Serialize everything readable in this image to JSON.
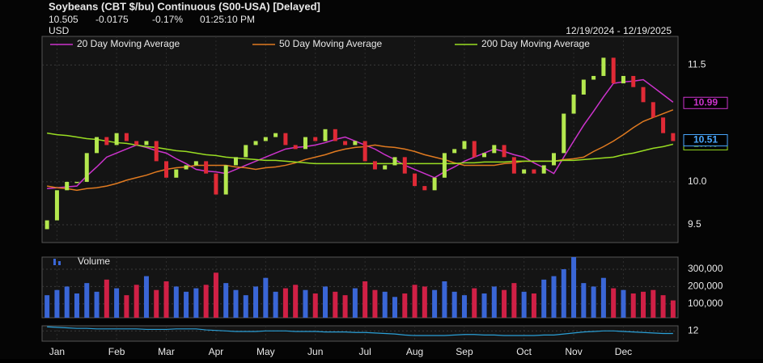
{
  "chart_data": [
    {
      "type": "candlestick",
      "title": "Soybeans (CBT $/bu) Continuous (S00-USA) [Delayed]",
      "quote": [
        "10.505",
        "-0.0175",
        "-0.17%",
        "01:25:10 PM"
      ],
      "currency": "USD",
      "date_range": "12/19/2024 - 12/19/2025",
      "categories": [
        null,
        null,
        null,
        null,
        null,
        null,
        null,
        null,
        null,
        null,
        null,
        null,
        null,
        null,
        null,
        null,
        null,
        null,
        null,
        null,
        null,
        null,
        null,
        null,
        null,
        null,
        null,
        null,
        null,
        null,
        null,
        null,
        null,
        null,
        null,
        null,
        null,
        null,
        null,
        null,
        null,
        null,
        null,
        null,
        null,
        null,
        null,
        null,
        null,
        null,
        null,
        null,
        null,
        null,
        null,
        null,
        null,
        null,
        null,
        null,
        null,
        null,
        null,
        null
      ],
      "open": [
        9.45,
        9.55,
        9.9,
        10.0,
        10.0,
        10.35,
        10.55,
        10.45,
        10.6,
        10.5,
        10.45,
        10.5,
        10.25,
        10.05,
        10.15,
        10.2,
        10.25,
        10.1,
        9.85,
        10.2,
        10.3,
        10.45,
        10.5,
        10.55,
        10.6,
        10.45,
        10.4,
        10.55,
        10.5,
        10.65,
        10.5,
        10.45,
        10.5,
        10.25,
        10.15,
        10.2,
        10.3,
        10.1,
        9.95,
        9.9,
        10.05,
        10.35,
        10.4,
        10.5,
        10.3,
        10.35,
        10.45,
        10.3,
        10.1,
        10.15,
        10.1,
        10.2,
        10.35,
        10.85,
        11.1,
        11.3,
        11.35,
        11.6,
        11.25,
        11.35,
        11.2,
        11.0,
        10.8,
        10.6
      ],
      "close": [
        9.55,
        9.9,
        10.0,
        10.0,
        10.35,
        10.55,
        10.45,
        10.6,
        10.5,
        10.45,
        10.5,
        10.25,
        10.05,
        10.15,
        10.2,
        10.25,
        10.1,
        9.85,
        10.2,
        10.3,
        10.45,
        10.5,
        10.55,
        10.6,
        10.45,
        10.4,
        10.55,
        10.5,
        10.65,
        10.5,
        10.45,
        10.5,
        10.25,
        10.15,
        10.2,
        10.3,
        10.1,
        9.95,
        9.9,
        10.05,
        10.35,
        10.4,
        10.5,
        10.3,
        10.35,
        10.45,
        10.3,
        10.1,
        10.15,
        10.1,
        10.2,
        10.35,
        10.85,
        11.1,
        11.3,
        11.35,
        11.6,
        11.25,
        11.35,
        11.2,
        11.0,
        10.8,
        10.6,
        10.5
      ],
      "up_color": "#b4e84e",
      "down_color": "#e02a36",
      "last": 10.51,
      "last_color": "#4aa8ff",
      "series": [
        {
          "name": "20 Day Moving Average",
          "color": "#cc33cc",
          "last": 10.99,
          "values": [
            9.92,
            9.93,
            9.94,
            9.95,
            10.07,
            10.18,
            10.3,
            10.35,
            10.4,
            10.45,
            10.42,
            10.38,
            10.35,
            10.28,
            10.22,
            10.15,
            10.13,
            10.12,
            10.1,
            10.15,
            10.2,
            10.25,
            10.3,
            10.35,
            10.4,
            10.42,
            10.43,
            10.45,
            10.48,
            10.52,
            10.55,
            10.5,
            10.45,
            10.4,
            10.33,
            10.27,
            10.2,
            10.15,
            10.1,
            10.05,
            10.12,
            10.18,
            10.25,
            10.3,
            10.35,
            10.4,
            10.37,
            10.33,
            10.3,
            10.23,
            10.17,
            10.1,
            10.3,
            10.5,
            10.7,
            10.88,
            11.07,
            11.25,
            11.27,
            11.28,
            11.3,
            11.2,
            11.1,
            11.0
          ]
        },
        {
          "name": "50 Day Moving Average",
          "color": "#e07a20",
          "values": [
            9.95,
            9.93,
            9.92,
            9.9,
            9.92,
            9.93,
            9.95,
            9.98,
            10.02,
            10.05,
            10.08,
            10.12,
            10.15,
            10.17,
            10.18,
            10.2,
            10.2,
            10.2,
            10.2,
            10.18,
            10.17,
            10.15,
            10.17,
            10.18,
            10.2,
            10.23,
            10.27,
            10.3,
            10.33,
            10.37,
            10.4,
            10.42,
            10.43,
            10.45,
            10.43,
            10.42,
            10.4,
            10.37,
            10.33,
            10.3,
            10.27,
            10.23,
            10.2,
            10.2,
            10.2,
            10.2,
            10.22,
            10.23,
            10.25,
            10.25,
            10.25,
            10.25,
            10.27,
            10.28,
            10.3,
            10.37,
            10.43,
            10.5,
            10.58,
            10.67,
            10.75,
            10.8,
            10.85,
            10.9
          ]
        },
        {
          "name": "200 Day Moving Average",
          "color": "#99dd22",
          "last": 10.46,
          "values": [
            10.6,
            10.58,
            10.57,
            10.55,
            10.53,
            10.52,
            10.5,
            10.48,
            10.47,
            10.45,
            10.43,
            10.42,
            10.4,
            10.38,
            10.37,
            10.35,
            10.33,
            10.32,
            10.3,
            10.29,
            10.28,
            10.27,
            10.26,
            10.26,
            10.25,
            10.24,
            10.23,
            10.22,
            10.22,
            10.22,
            10.22,
            10.22,
            10.22,
            10.22,
            10.22,
            10.22,
            10.22,
            10.22,
            10.22,
            10.22,
            10.22,
            10.22,
            10.23,
            10.23,
            10.24,
            10.24,
            10.24,
            10.25,
            10.25,
            10.25,
            10.25,
            10.25,
            10.26,
            10.26,
            10.27,
            10.28,
            10.29,
            10.3,
            10.33,
            10.35,
            10.38,
            10.41,
            10.43,
            10.46
          ]
        }
      ],
      "ylim": [
        9.3,
        11.9
      ],
      "log_scale": true,
      "yticks": [
        9.5,
        {
          "value": 10,
          "label": "10.0"
        },
        11.5
      ],
      "xlim": [
        -0.5,
        63.5
      ],
      "xticks": [
        {
          "value": 1,
          "label": "Jan"
        },
        {
          "value": 7,
          "label": "Feb"
        },
        {
          "value": 12,
          "label": "Mar"
        },
        {
          "value": 17,
          "label": "Apr"
        },
        {
          "value": 22,
          "label": "May"
        },
        {
          "value": 27,
          "label": "Jun"
        },
        {
          "value": 32,
          "label": "Jul"
        },
        {
          "value": 37,
          "label": "Aug"
        },
        {
          "value": 42,
          "label": "Sep"
        },
        {
          "value": 48,
          "label": "Oct"
        },
        {
          "value": 53,
          "label": "Nov"
        },
        {
          "value": 58,
          "label": "Dec"
        }
      ]
    },
    {
      "type": "bar",
      "title": "Volume",
      "up_color": "#3a66d6",
      "down_color": "#d02046",
      "values": [
        150000,
        180000,
        200000,
        160000,
        220000,
        170000,
        240000,
        190000,
        150000,
        210000,
        260000,
        180000,
        230000,
        200000,
        170000,
        190000,
        210000,
        280000,
        220000,
        180000,
        150000,
        200000,
        250000,
        170000,
        190000,
        210000,
        180000,
        160000,
        200000,
        170000,
        150000,
        190000,
        230000,
        180000,
        170000,
        140000,
        160000,
        210000,
        200000,
        180000,
        230000,
        170000,
        150000,
        190000,
        160000,
        200000,
        180000,
        220000,
        170000,
        160000,
        240000,
        260000,
        300000,
        370000,
        220000,
        200000,
        250000,
        190000,
        180000,
        160000,
        170000,
        180000,
        150000,
        120000
      ],
      "ylim": [
        20000,
        370000
      ],
      "yticks": [
        {
          "value": 100000,
          "label": "100,000"
        },
        {
          "value": 200000,
          "label": "200,000"
        },
        {
          "value": 300000,
          "label": "300,000"
        }
      ]
    },
    {
      "type": "line",
      "color": "#2a9fd6",
      "values": [
        12.8,
        12.7,
        12.6,
        12.5,
        12.5,
        12.4,
        12.4,
        12.4,
        12.4,
        12.4,
        12.3,
        12.3,
        12.3,
        12.4,
        12.4,
        12.4,
        12.2,
        12.1,
        12.0,
        11.9,
        11.9,
        11.9,
        12.0,
        12.0,
        12.0,
        11.9,
        11.9,
        11.9,
        11.8,
        11.8,
        11.8,
        11.7,
        11.7,
        11.6,
        11.5,
        11.4,
        11.2,
        11.1,
        11.1,
        11.1,
        11.1,
        11.2,
        11.3,
        11.3,
        11.2,
        11.2,
        11.1,
        11.1,
        11.1,
        11.1,
        11.2,
        11.2,
        11.4,
        11.6,
        11.8,
        11.9,
        12.0,
        12.0,
        11.9,
        11.8,
        11.7,
        11.6,
        11.5,
        11.5
      ],
      "ylim": [
        10,
        13
      ],
      "yticks": [
        12
      ]
    }
  ]
}
